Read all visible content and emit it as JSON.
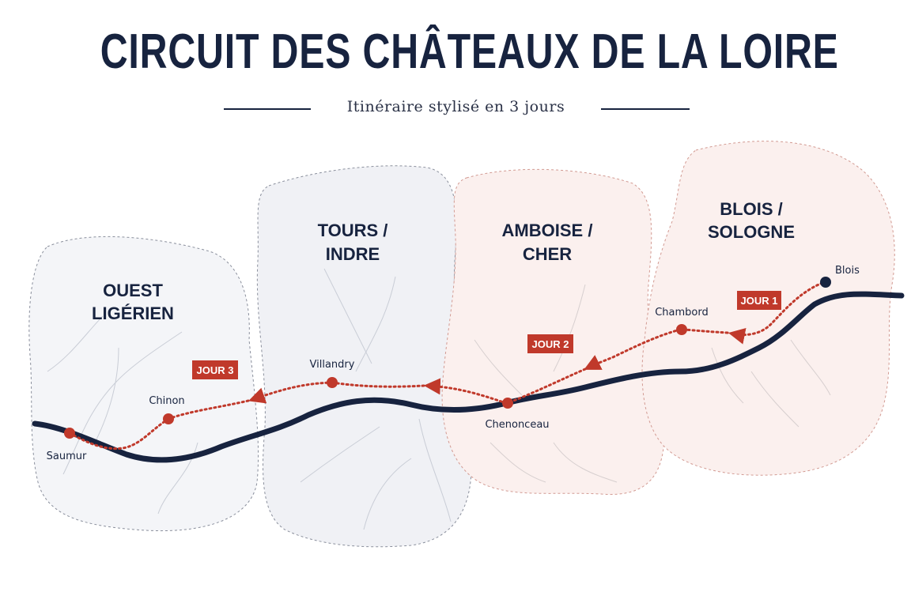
{
  "title": "CIRCUIT DES CHÂTEAUX DE LA LOIRE",
  "subtitle": "Itinéraire stylisé en 3 jours",
  "regions": [
    {
      "line1": "OUEST",
      "line2": "LIGÉRIEN"
    },
    {
      "line1": "TOURS /",
      "line2": "INDRE"
    },
    {
      "line1": "AMBOISE /",
      "line2": "CHER"
    },
    {
      "line1": "BLOIS /",
      "line2": "SOLOGNE"
    }
  ],
  "cities": {
    "blois": "Blois",
    "chambord": "Chambord",
    "chenonceau": "Chenonceau",
    "villandry": "Villandry",
    "chinon": "Chinon",
    "saumur": "Saumur"
  },
  "days": [
    "JOUR 1",
    "JOUR 2",
    "JOUR 3"
  ],
  "colors": {
    "navy": "#17233f",
    "red": "#c0392b",
    "region_grey": "#f3f4f7",
    "region_pink": "#fbf1ef"
  }
}
